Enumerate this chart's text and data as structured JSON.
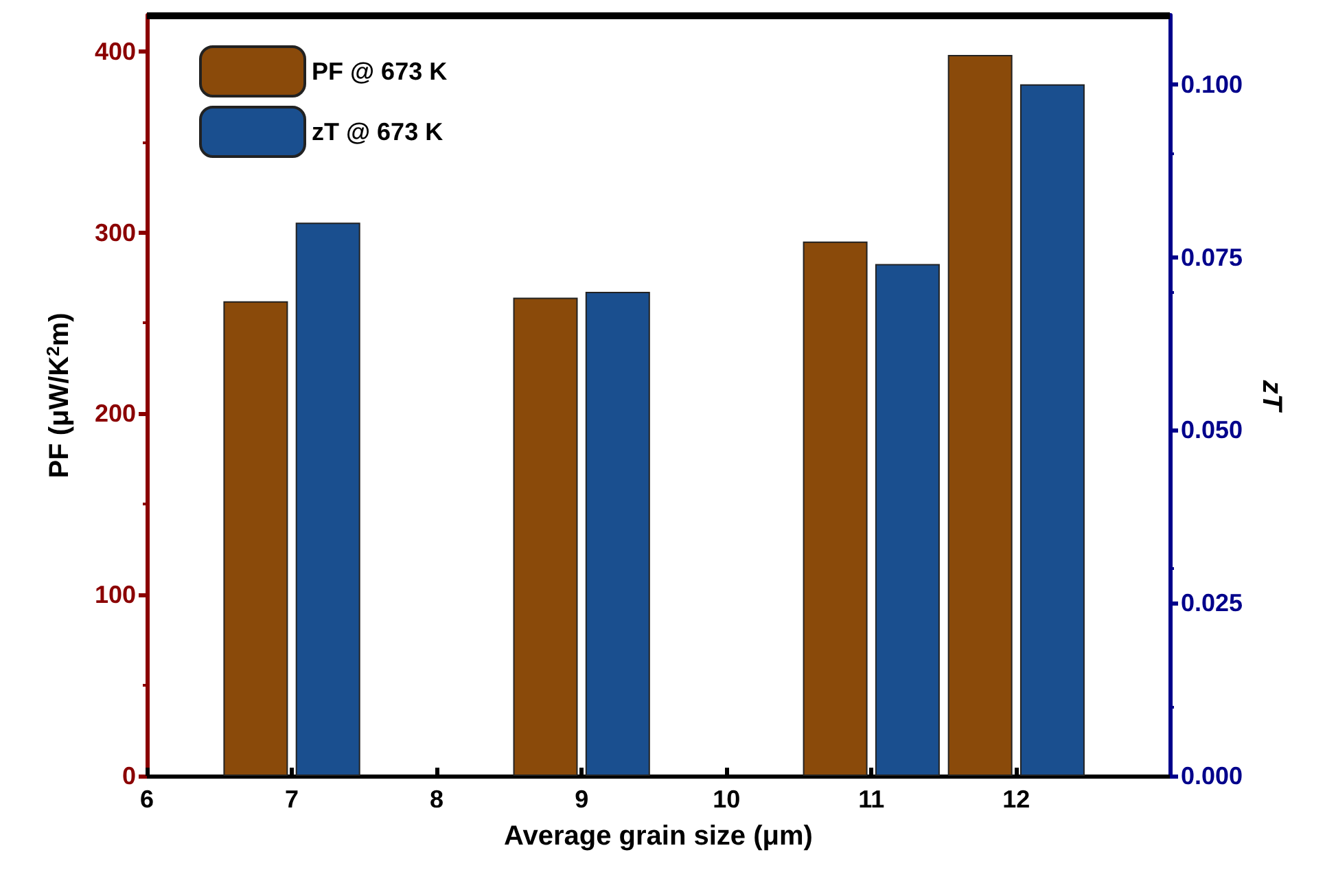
{
  "chart_data": {
    "type": "bar",
    "xlabel": "Average grain size (μm)",
    "ylabel": "PF (μW/K$^{2}$m)",
    "y2label": "zT",
    "x": [
      7,
      9,
      11,
      12
    ],
    "series": [
      {
        "name": "PF @ 673 K",
        "color": "#8a4a0a",
        "values": [
          262,
          264,
          295,
          398
        ]
      },
      {
        "name": "zT @ 673 K",
        "color": "#1a4f8f",
        "axis": "y2",
        "values": [
          0.08,
          0.07,
          0.074,
          0.1
        ]
      }
    ],
    "xlim": [
      6,
      13.06
    ],
    "xticks": [
      6,
      7,
      8,
      9,
      10,
      11,
      12
    ],
    "ylim": [
      0,
      420
    ],
    "yticks": [
      0,
      100,
      200,
      300,
      400
    ],
    "y2lim": [
      0,
      0.11
    ],
    "y2ticks": [
      {
        "value": 0,
        "label": "0.000"
      },
      {
        "value": 0.025,
        "label": "0.025"
      },
      {
        "value": 0.05,
        "label": "0.050"
      },
      {
        "value": 0.075,
        "label": "0.075"
      },
      {
        "value": 0.1,
        "label": "0.100"
      }
    ],
    "grid": false,
    "legend": "top left"
  }
}
